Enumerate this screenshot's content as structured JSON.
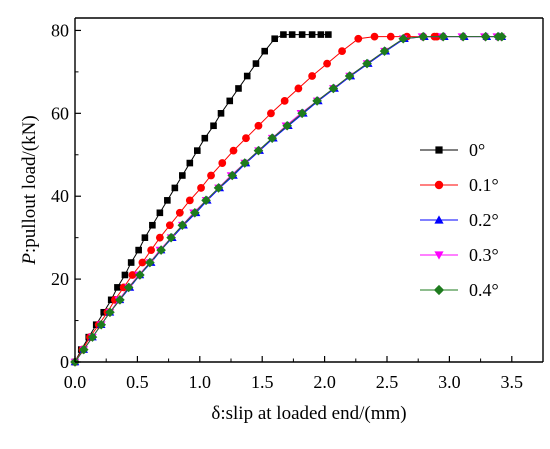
{
  "chart_data": {
    "type": "line",
    "xlabel": "δ:slip at loaded end/(mm)",
    "ylabel_italic": "P",
    "ylabel_rest": ":pullout load/(kN)",
    "xlim": [
      0.0,
      3.75
    ],
    "ylim": [
      0,
      83
    ],
    "x_ticks": [
      "0.0",
      "0.5",
      "1.0",
      "1.5",
      "2.0",
      "2.5",
      "3.0",
      "3.5"
    ],
    "y_ticks": [
      "0",
      "20",
      "40",
      "60",
      "80"
    ],
    "legend_position": "right",
    "series": [
      {
        "name": "0°",
        "color": "#000000",
        "marker": "square",
        "x": [
          0.0,
          0.05,
          0.11,
          0.17,
          0.23,
          0.29,
          0.34,
          0.4,
          0.45,
          0.51,
          0.56,
          0.62,
          0.68,
          0.74,
          0.8,
          0.86,
          0.92,
          0.98,
          1.04,
          1.11,
          1.17,
          1.24,
          1.31,
          1.38,
          1.45,
          1.52,
          1.6,
          1.67,
          1.74,
          1.82,
          1.9,
          1.97,
          2.03
        ],
        "y": [
          0,
          3,
          6,
          9,
          12,
          15,
          18,
          21,
          24,
          27,
          30,
          33,
          36,
          39,
          42,
          45,
          48,
          51,
          54,
          57,
          60,
          63,
          66,
          69,
          72,
          75,
          78,
          79,
          79,
          79,
          79,
          79,
          79
        ]
      },
      {
        "name": "0.1°",
        "color": "#ff0000",
        "marker": "circle",
        "x": [
          0.0,
          0.06,
          0.12,
          0.19,
          0.26,
          0.32,
          0.39,
          0.46,
          0.54,
          0.61,
          0.68,
          0.76,
          0.84,
          0.92,
          1.01,
          1.09,
          1.18,
          1.27,
          1.37,
          1.47,
          1.57,
          1.68,
          1.79,
          1.9,
          2.02,
          2.14,
          2.27,
          2.4,
          2.53,
          2.66,
          2.79,
          2.88,
          2.9
        ],
        "y": [
          0,
          3,
          6,
          9,
          12,
          15,
          18,
          21,
          24,
          27,
          30,
          33,
          36,
          39,
          42,
          45,
          48,
          51,
          54,
          57,
          60,
          63,
          66,
          69,
          72,
          75,
          78,
          78.5,
          78.5,
          78.5,
          78.5,
          78.5,
          78.5
        ]
      },
      {
        "name": "0.2°",
        "color": "#0000ff",
        "marker": "triangle-up",
        "x": [
          0.0,
          0.07,
          0.14,
          0.21,
          0.28,
          0.36,
          0.44,
          0.52,
          0.61,
          0.69,
          0.78,
          0.87,
          0.97,
          1.06,
          1.16,
          1.27,
          1.37,
          1.48,
          1.59,
          1.71,
          1.83,
          1.95,
          2.08,
          2.21,
          2.35,
          2.49,
          2.64,
          2.8,
          2.96,
          3.12,
          3.3,
          3.4,
          3.42
        ],
        "y": [
          0,
          3,
          6,
          9,
          12,
          15,
          18,
          21,
          24,
          27,
          30,
          33,
          36,
          39,
          42,
          45,
          48,
          51,
          54,
          57,
          60,
          63,
          66,
          69,
          72,
          75,
          78,
          78.5,
          78.5,
          78.5,
          78.5,
          78.5,
          78.5
        ]
      },
      {
        "name": "0.3°",
        "color": "#ff00ff",
        "marker": "triangle-down",
        "x": [
          0.0,
          0.07,
          0.14,
          0.21,
          0.28,
          0.35,
          0.43,
          0.51,
          0.6,
          0.68,
          0.77,
          0.86,
          0.95,
          1.05,
          1.15,
          1.25,
          1.36,
          1.47,
          1.58,
          1.69,
          1.81,
          1.94,
          2.07,
          2.2,
          2.34,
          2.48,
          2.63,
          2.78,
          2.94,
          3.1,
          3.28,
          3.38,
          3.41
        ],
        "y": [
          0,
          3,
          6,
          9,
          12,
          15,
          18,
          21,
          24,
          27,
          30,
          33,
          36,
          39,
          42,
          45,
          48,
          51,
          54,
          57,
          60,
          63,
          66,
          69,
          72,
          75,
          78,
          78.5,
          78.5,
          78.5,
          78.5,
          78.5,
          78.5
        ]
      },
      {
        "name": "0.4°",
        "color": "#1e7b1e",
        "marker": "diamond",
        "x": [
          0.0,
          0.07,
          0.14,
          0.21,
          0.28,
          0.36,
          0.43,
          0.52,
          0.6,
          0.69,
          0.77,
          0.86,
          0.96,
          1.05,
          1.15,
          1.26,
          1.36,
          1.47,
          1.58,
          1.7,
          1.82,
          1.94,
          2.07,
          2.2,
          2.34,
          2.48,
          2.63,
          2.79,
          2.95,
          3.11,
          3.29,
          3.39,
          3.42
        ],
        "y": [
          0,
          3,
          6,
          9,
          12,
          15,
          18,
          21,
          24,
          27,
          30,
          33,
          36,
          39,
          42,
          45,
          48,
          51,
          54,
          57,
          60,
          63,
          66,
          69,
          72,
          75,
          78,
          78.5,
          78.5,
          78.5,
          78.5,
          78.5,
          78.5
        ]
      }
    ]
  }
}
